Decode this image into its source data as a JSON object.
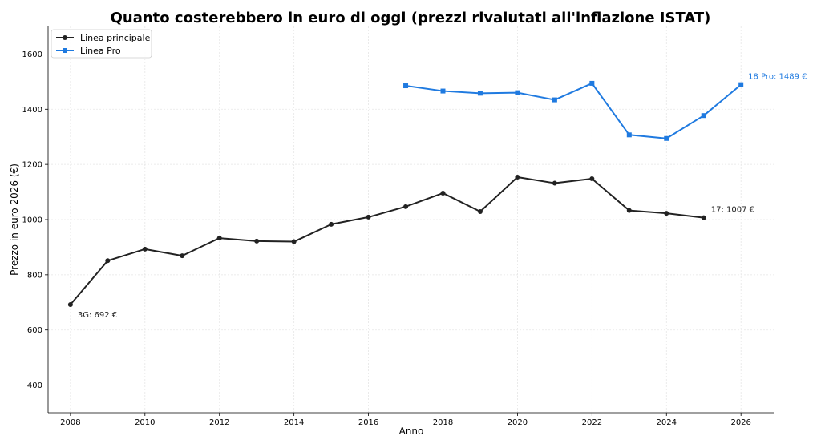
{
  "chart_data": {
    "type": "line",
    "title": "Quanto costerebbero in euro di oggi (prezzi rivalutati all'inflazione ISTAT)",
    "xlabel": "Anno",
    "ylabel": "Prezzo in euro 2026 (€)",
    "xlim": [
      2007.4,
      2026.9
    ],
    "ylim": [
      300,
      1700
    ],
    "xticks": [
      2008,
      2010,
      2012,
      2014,
      2016,
      2018,
      2020,
      2022,
      2024,
      2026
    ],
    "yticks": [
      400,
      600,
      800,
      1000,
      1200,
      1400,
      1600
    ],
    "grid": true,
    "legend_position": "top-left",
    "series": [
      {
        "name": "Linea principale",
        "color": "#222222",
        "marker": "circle",
        "x": [
          2008,
          2009,
          2010,
          2011,
          2012,
          2013,
          2014,
          2015,
          2016,
          2017,
          2018,
          2019,
          2020,
          2021,
          2022,
          2023,
          2024,
          2025
        ],
        "y": [
          692,
          851,
          893,
          869,
          933,
          922,
          920,
          983,
          1009,
          1047,
          1096,
          1029,
          1154,
          1132,
          1148,
          1033,
          1023,
          1007
        ]
      },
      {
        "name": "Linea Pro",
        "color": "#1f7ae0",
        "marker": "square",
        "x": [
          2017,
          2018,
          2019,
          2020,
          2021,
          2022,
          2023,
          2024,
          2025,
          2026
        ],
        "y": [
          1485,
          1466,
          1458,
          1460,
          1434,
          1494,
          1307,
          1294,
          1377,
          1489
        ]
      }
    ],
    "annotations": [
      {
        "text": "3G: 692 €",
        "x": 2008,
        "y": 692,
        "series": 0,
        "placement": "below-right"
      },
      {
        "text": "17: 1007 €",
        "x": 2025,
        "y": 1007,
        "series": 0,
        "placement": "above-right"
      },
      {
        "text": "18 Pro: 1489 €",
        "x": 2026,
        "y": 1489,
        "series": 1,
        "placement": "above-right"
      }
    ]
  }
}
